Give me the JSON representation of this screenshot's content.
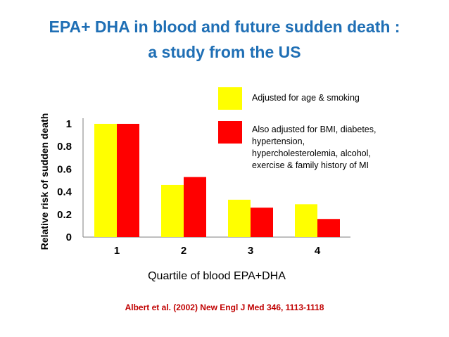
{
  "title_line1": "EPA+ DHA in blood and future sudden death :",
  "title_line2": "a study from the US",
  "citation": "Albert et al. (2002) New Engl J Med 346, 1113-1118",
  "chart_data": {
    "type": "bar",
    "categories": [
      "1",
      "2",
      "3",
      "4"
    ],
    "series": [
      {
        "name": "Adjusted for age & smoking",
        "color": "#FFFF00",
        "values": [
          1.0,
          0.46,
          0.33,
          0.29
        ]
      },
      {
        "name": "Also adjusted for BMI, diabetes, hypertension, hypercholesterolemia, alcohol, exercise & family history of MI",
        "name_lines": [
          "Also adjusted for BMI, diabetes,",
          "hypertension,",
          "hypercholesterolemia, alcohol,",
          "exercise & family history of MI"
        ],
        "color": "#FF0000",
        "values": [
          1.0,
          0.53,
          0.26,
          0.16
        ]
      }
    ],
    "xlabel": "Quartile of blood EPA+DHA",
    "ylabel": "Relative risk of sudden death",
    "ylim": [
      0,
      1
    ],
    "yticks": [
      "0",
      "0.2",
      "0.4",
      "0.6",
      "0.8",
      "1"
    ],
    "grid": false,
    "legend_position": "top-right"
  }
}
